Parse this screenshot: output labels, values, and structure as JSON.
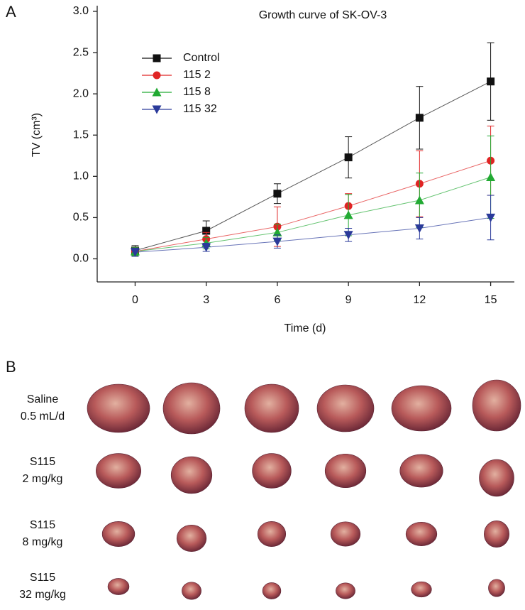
{
  "chart_data": {
    "type": "line",
    "title": "Growth curve of SK-OV-3",
    "x_label": "Time (d)",
    "y_label": "TV (cm³)",
    "x": [
      0,
      3,
      6,
      9,
      12,
      15
    ],
    "xlim": [
      -1.6,
      16
    ],
    "xticks": [
      0,
      3,
      6,
      9,
      12,
      15
    ],
    "ylim": [
      -0.28,
      3.0
    ],
    "yticks": [
      {
        "value": 0,
        "label": "0.0"
      },
      {
        "value": 0.5,
        "label": "0.5"
      },
      {
        "value": 1,
        "label": "1.0"
      },
      {
        "value": 1.5,
        "label": "1.5"
      },
      {
        "value": 2,
        "label": "2.0"
      },
      {
        "value": 2.5,
        "label": "2.5"
      },
      {
        "value": 3,
        "label": "3.0"
      }
    ],
    "legend": "upper left",
    "series": [
      {
        "name": "Control",
        "color": "#111111",
        "marker": "square",
        "values": [
          0.1,
          0.34,
          0.79,
          1.23,
          1.71,
          2.15
        ],
        "errors": [
          0.06,
          0.12,
          0.12,
          0.25,
          0.38,
          0.47
        ]
      },
      {
        "name": "115 2",
        "color": "#e02424",
        "marker": "circle",
        "values": [
          0.09,
          0.24,
          0.39,
          0.64,
          0.91,
          1.19
        ],
        "errors": [
          0.05,
          0.08,
          0.24,
          0.15,
          0.4,
          0.42
        ]
      },
      {
        "name": "115 8",
        "color": "#22aa33",
        "marker": "triangle-up",
        "values": [
          0.09,
          0.19,
          0.32,
          0.53,
          0.71,
          0.99
        ],
        "errors": [
          0.05,
          0.07,
          0.1,
          0.25,
          0.33,
          0.5
        ]
      },
      {
        "name": "115 32",
        "color": "#2a3a9a",
        "marker": "triangle-down",
        "values": [
          0.08,
          0.14,
          0.21,
          0.29,
          0.37,
          0.5
        ],
        "errors": [
          0.05,
          0.05,
          0.08,
          0.08,
          0.13,
          0.27
        ]
      }
    ]
  },
  "panel_labels": [
    "A",
    "B"
  ],
  "photo_rows": [
    [
      "Saline",
      "0.5 mL/d"
    ],
    [
      "S115",
      "2 mg/kg"
    ],
    [
      "S115",
      "8 mg/kg"
    ],
    [
      "S115",
      "32 mg/kg"
    ]
  ]
}
